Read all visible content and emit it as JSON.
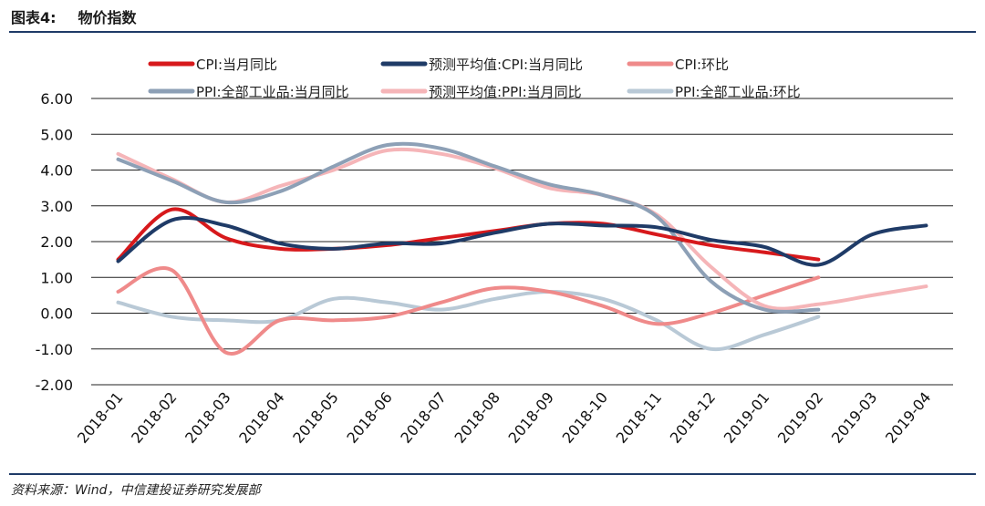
{
  "header": {
    "figure_no": "图表4:",
    "title": "物价指数"
  },
  "source": "资料来源：Wind，中信建投证券研究发展部",
  "chart_data": {
    "type": "line",
    "categories": [
      "2018-01",
      "2018-02",
      "2018-03",
      "2018-04",
      "2018-05",
      "2018-06",
      "2018-07",
      "2018-08",
      "2018-09",
      "2018-10",
      "2018-11",
      "2018-12",
      "2019-01",
      "2019-02",
      "2019-03",
      "2019-04"
    ],
    "ylim": [
      -2,
      6
    ],
    "yticks": [
      "-2.00",
      "-1.00",
      "0.00",
      "1.00",
      "2.00",
      "3.00",
      "4.00",
      "5.00",
      "6.00"
    ],
    "legend_position": "top",
    "series": [
      {
        "name": "CPI:当月同比",
        "color": "#d7191c",
        "values": [
          1.5,
          2.9,
          2.1,
          1.8,
          1.8,
          1.9,
          2.1,
          2.3,
          2.5,
          2.5,
          2.2,
          1.9,
          1.7,
          1.5,
          null,
          null
        ]
      },
      {
        "name": "预测平均值:CPI:当月同比",
        "color": "#1f3b67",
        "values": [
          1.45,
          2.6,
          2.45,
          1.95,
          1.8,
          1.95,
          1.95,
          2.25,
          2.5,
          2.45,
          2.4,
          2.05,
          1.85,
          1.35,
          2.2,
          2.45
        ]
      },
      {
        "name": "CPI:环比",
        "color": "#ef8a8a",
        "values": [
          0.6,
          1.2,
          -1.1,
          -0.2,
          -0.2,
          -0.1,
          0.3,
          0.7,
          0.6,
          0.2,
          -0.3,
          0.0,
          0.5,
          1.0,
          null,
          null
        ]
      },
      {
        "name": "PPI:全部工业品:当月同比",
        "color": "#8da0b6",
        "values": [
          4.3,
          3.7,
          3.1,
          3.4,
          4.1,
          4.7,
          4.6,
          4.1,
          3.6,
          3.3,
          2.7,
          0.9,
          0.1,
          0.1,
          null,
          null
        ]
      },
      {
        "name": "预测平均值:PPI:当月同比",
        "color": "#f5b5b8",
        "values": [
          4.45,
          3.75,
          3.1,
          3.55,
          4.0,
          4.55,
          4.45,
          4.05,
          3.5,
          3.3,
          2.75,
          1.3,
          0.2,
          0.25,
          0.5,
          0.75
        ]
      },
      {
        "name": "PPI:全部工业品:环比",
        "color": "#b9c9d6",
        "values": [
          0.3,
          -0.1,
          -0.2,
          -0.2,
          0.4,
          0.3,
          0.1,
          0.4,
          0.6,
          0.4,
          -0.2,
          -1.0,
          -0.6,
          -0.1,
          null,
          null
        ]
      }
    ]
  }
}
